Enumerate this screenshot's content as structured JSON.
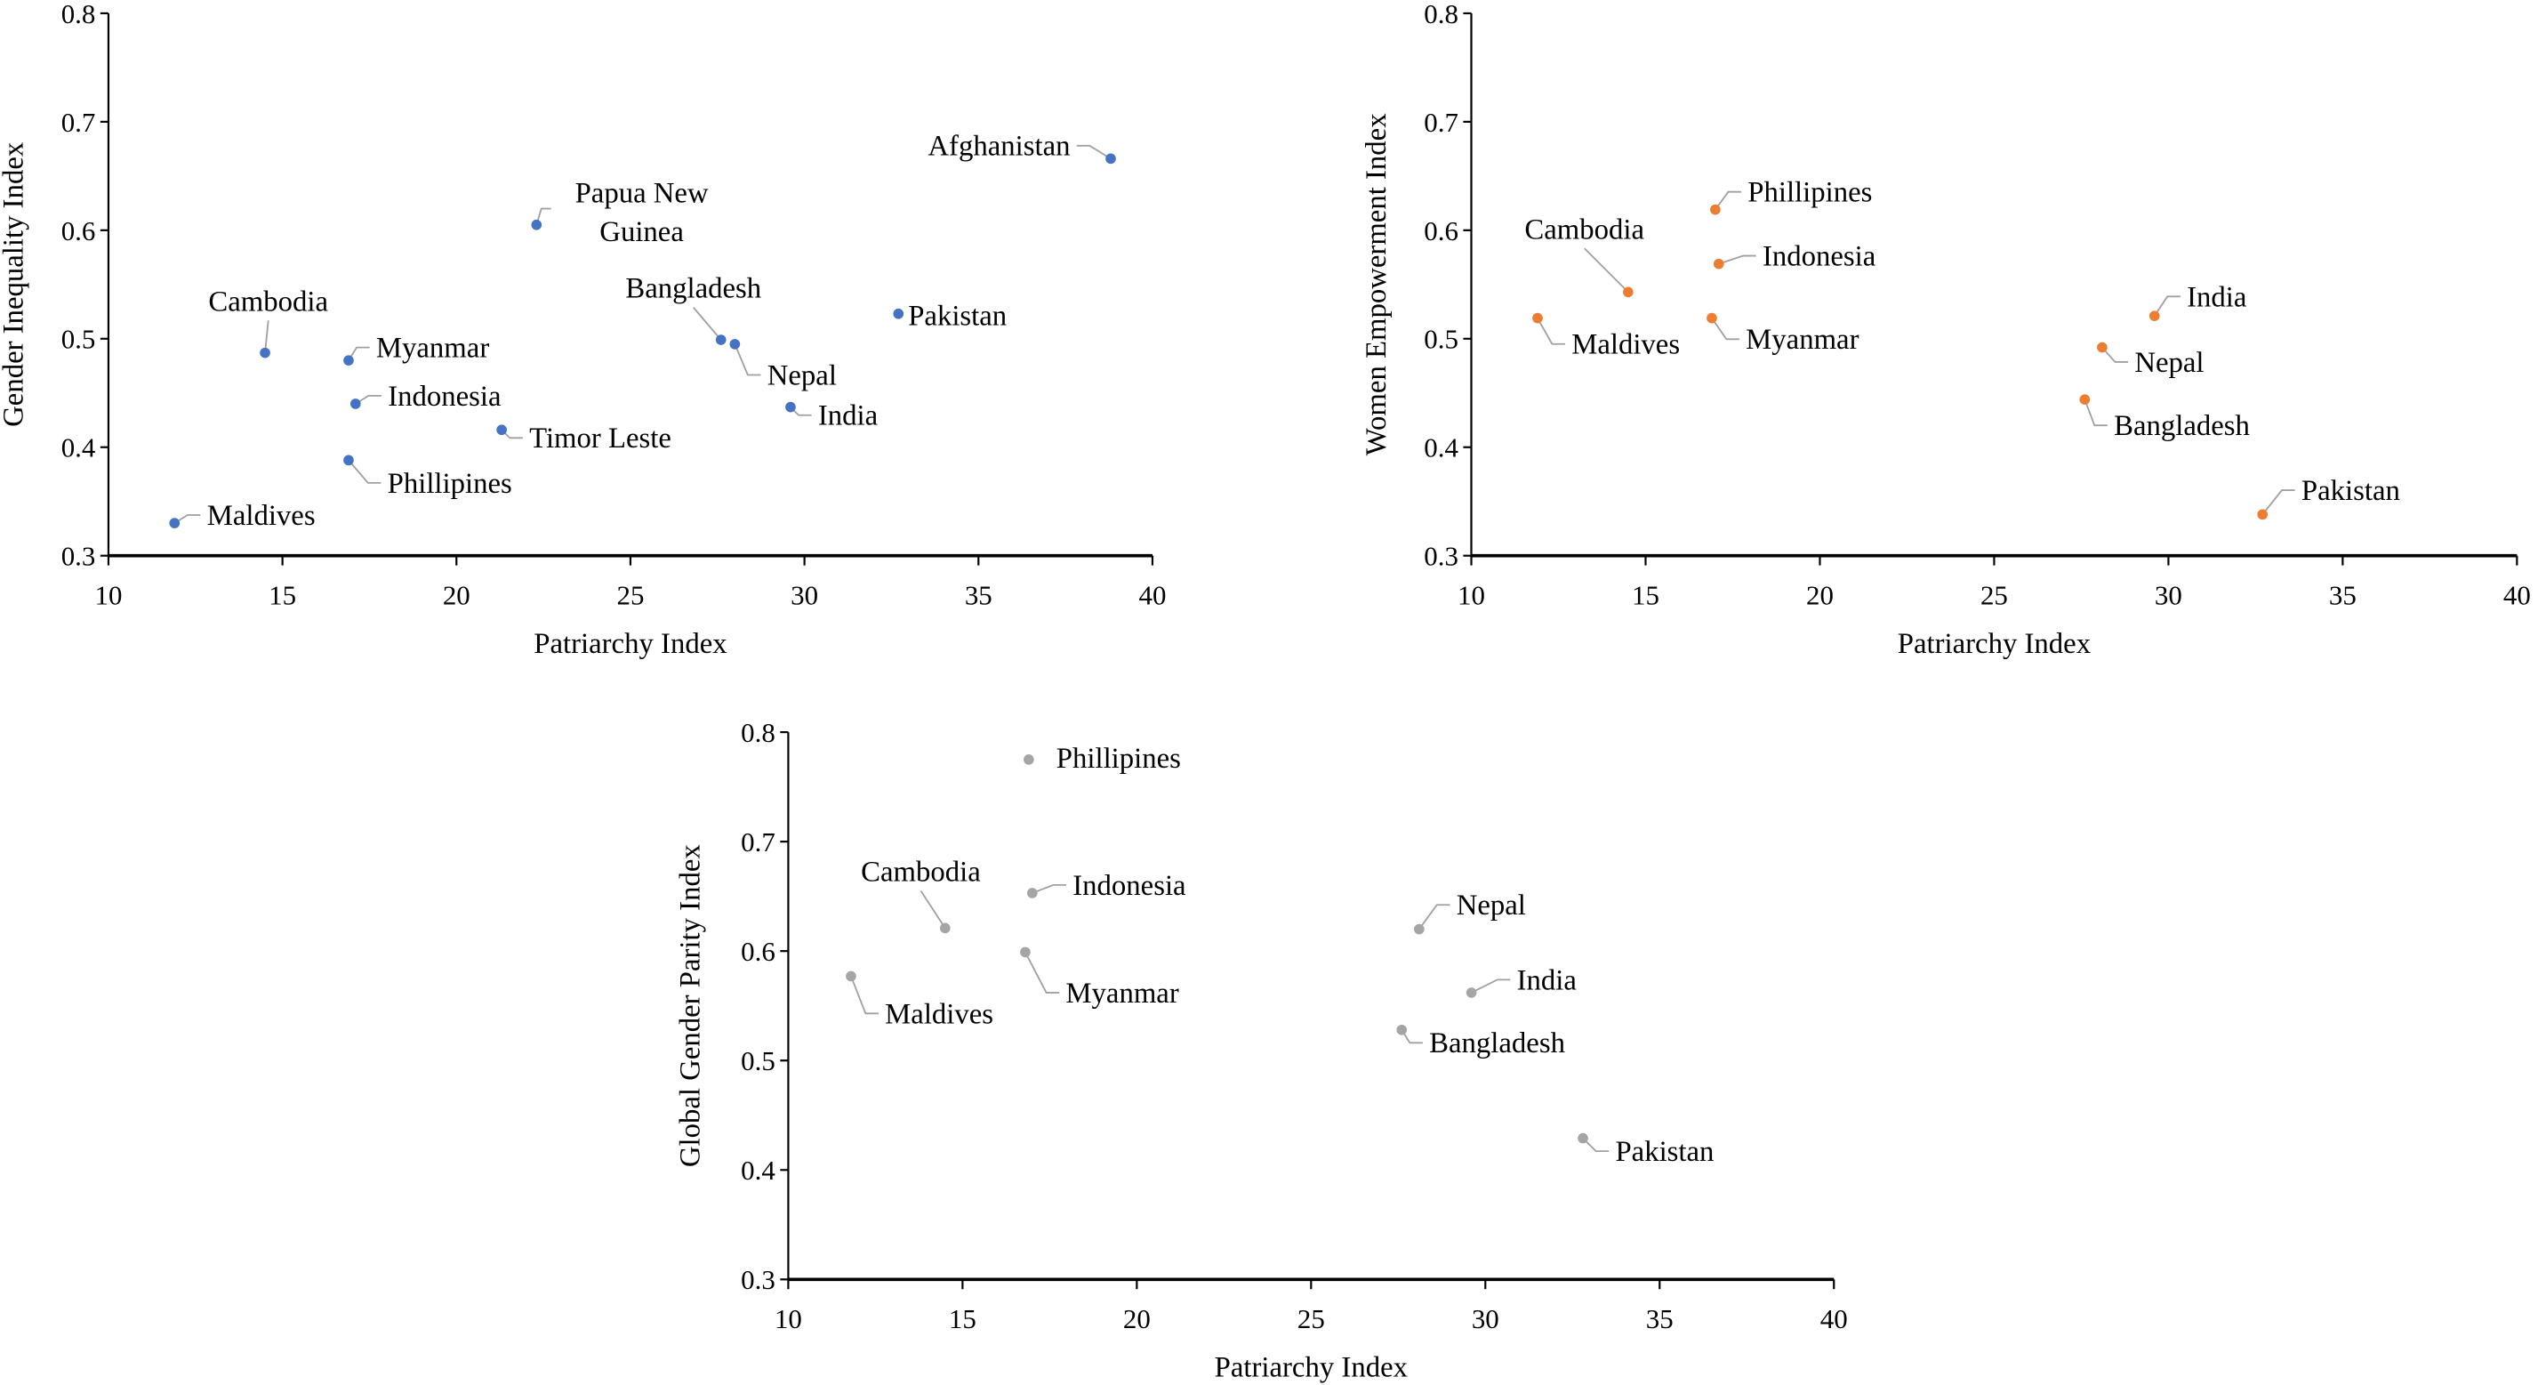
{
  "chart_data": [
    {
      "type": "scatter",
      "xlabel": "Patriarchy Index",
      "ylabel": "Gender Inequality Index",
      "xlim": [
        10,
        40
      ],
      "ylim": [
        0.3,
        0.8
      ],
      "xticks": [
        "10",
        "15",
        "20",
        "25",
        "30",
        "35",
        "40"
      ],
      "yticks": [
        "0.3",
        "0.4",
        "0.5",
        "0.6",
        "0.7",
        "0.8"
      ],
      "grid": false,
      "color": "#4472C4",
      "points": [
        {
          "label": "Maldives",
          "x": 11.9,
          "y": 0.33
        },
        {
          "label": "Cambodia",
          "x": 14.5,
          "y": 0.487
        },
        {
          "label": "Myanmar",
          "x": 16.9,
          "y": 0.48
        },
        {
          "label": "Indonesia",
          "x": 17.1,
          "y": 0.44
        },
        {
          "label": "Phillipines",
          "x": 16.9,
          "y": 0.388
        },
        {
          "label": "Timor Leste",
          "x": 21.3,
          "y": 0.416
        },
        {
          "label": "Papua New Guinea",
          "x": 22.3,
          "y": 0.605
        },
        {
          "label": "Bangladesh",
          "x": 27.6,
          "y": 0.499
        },
        {
          "label": "Nepal",
          "x": 28.0,
          "y": 0.495
        },
        {
          "label": "India",
          "x": 29.6,
          "y": 0.437
        },
        {
          "label": "Pakistan",
          "x": 32.7,
          "y": 0.523
        },
        {
          "label": "Afghanistan",
          "x": 38.8,
          "y": 0.666
        }
      ]
    },
    {
      "type": "scatter",
      "xlabel": "Patriarchy Index",
      "ylabel": "Women Empowerment Index",
      "xlim": [
        10,
        40
      ],
      "ylim": [
        0.3,
        0.8
      ],
      "xticks": [
        "10",
        "15",
        "20",
        "25",
        "30",
        "35",
        "40"
      ],
      "yticks": [
        "0.3",
        "0.4",
        "0.5",
        "0.6",
        "0.7",
        "0.8"
      ],
      "grid": false,
      "color": "#ED7D31",
      "points": [
        {
          "label": "Maldives",
          "x": 11.9,
          "y": 0.519
        },
        {
          "label": "Cambodia",
          "x": 14.5,
          "y": 0.543
        },
        {
          "label": "Phillipines",
          "x": 17.0,
          "y": 0.619
        },
        {
          "label": "Indonesia",
          "x": 17.1,
          "y": 0.569
        },
        {
          "label": "Myanmar",
          "x": 16.9,
          "y": 0.519
        },
        {
          "label": "India",
          "x": 29.6,
          "y": 0.521
        },
        {
          "label": "Nepal",
          "x": 28.1,
          "y": 0.492
        },
        {
          "label": "Bangladesh",
          "x": 27.6,
          "y": 0.444
        },
        {
          "label": "Pakistan",
          "x": 32.7,
          "y": 0.338
        }
      ]
    },
    {
      "type": "scatter",
      "xlabel": "Patriarchy Index",
      "ylabel": "Global Gender Parity Index",
      "xlim": [
        10,
        40
      ],
      "ylim": [
        0.3,
        0.8
      ],
      "xticks": [
        "10",
        "15",
        "20",
        "25",
        "30",
        "35",
        "40"
      ],
      "yticks": [
        "0.3",
        "0.4",
        "0.5",
        "0.6",
        "0.7",
        "0.8"
      ],
      "grid": false,
      "color": "#A5A5A5",
      "points": [
        {
          "label": "Phillipines",
          "x": 16.9,
          "y": 0.775
        },
        {
          "label": "Cambodia",
          "x": 14.5,
          "y": 0.621
        },
        {
          "label": "Indonesia",
          "x": 17.0,
          "y": 0.653
        },
        {
          "label": "Myanmar",
          "x": 16.8,
          "y": 0.599
        },
        {
          "label": "Maldives",
          "x": 11.8,
          "y": 0.577
        },
        {
          "label": "Nepal",
          "x": 28.1,
          "y": 0.62
        },
        {
          "label": "India",
          "x": 29.6,
          "y": 0.562
        },
        {
          "label": "Bangladesh",
          "x": 27.6,
          "y": 0.528
        },
        {
          "label": "Pakistan",
          "x": 32.8,
          "y": 0.429
        }
      ]
    }
  ]
}
